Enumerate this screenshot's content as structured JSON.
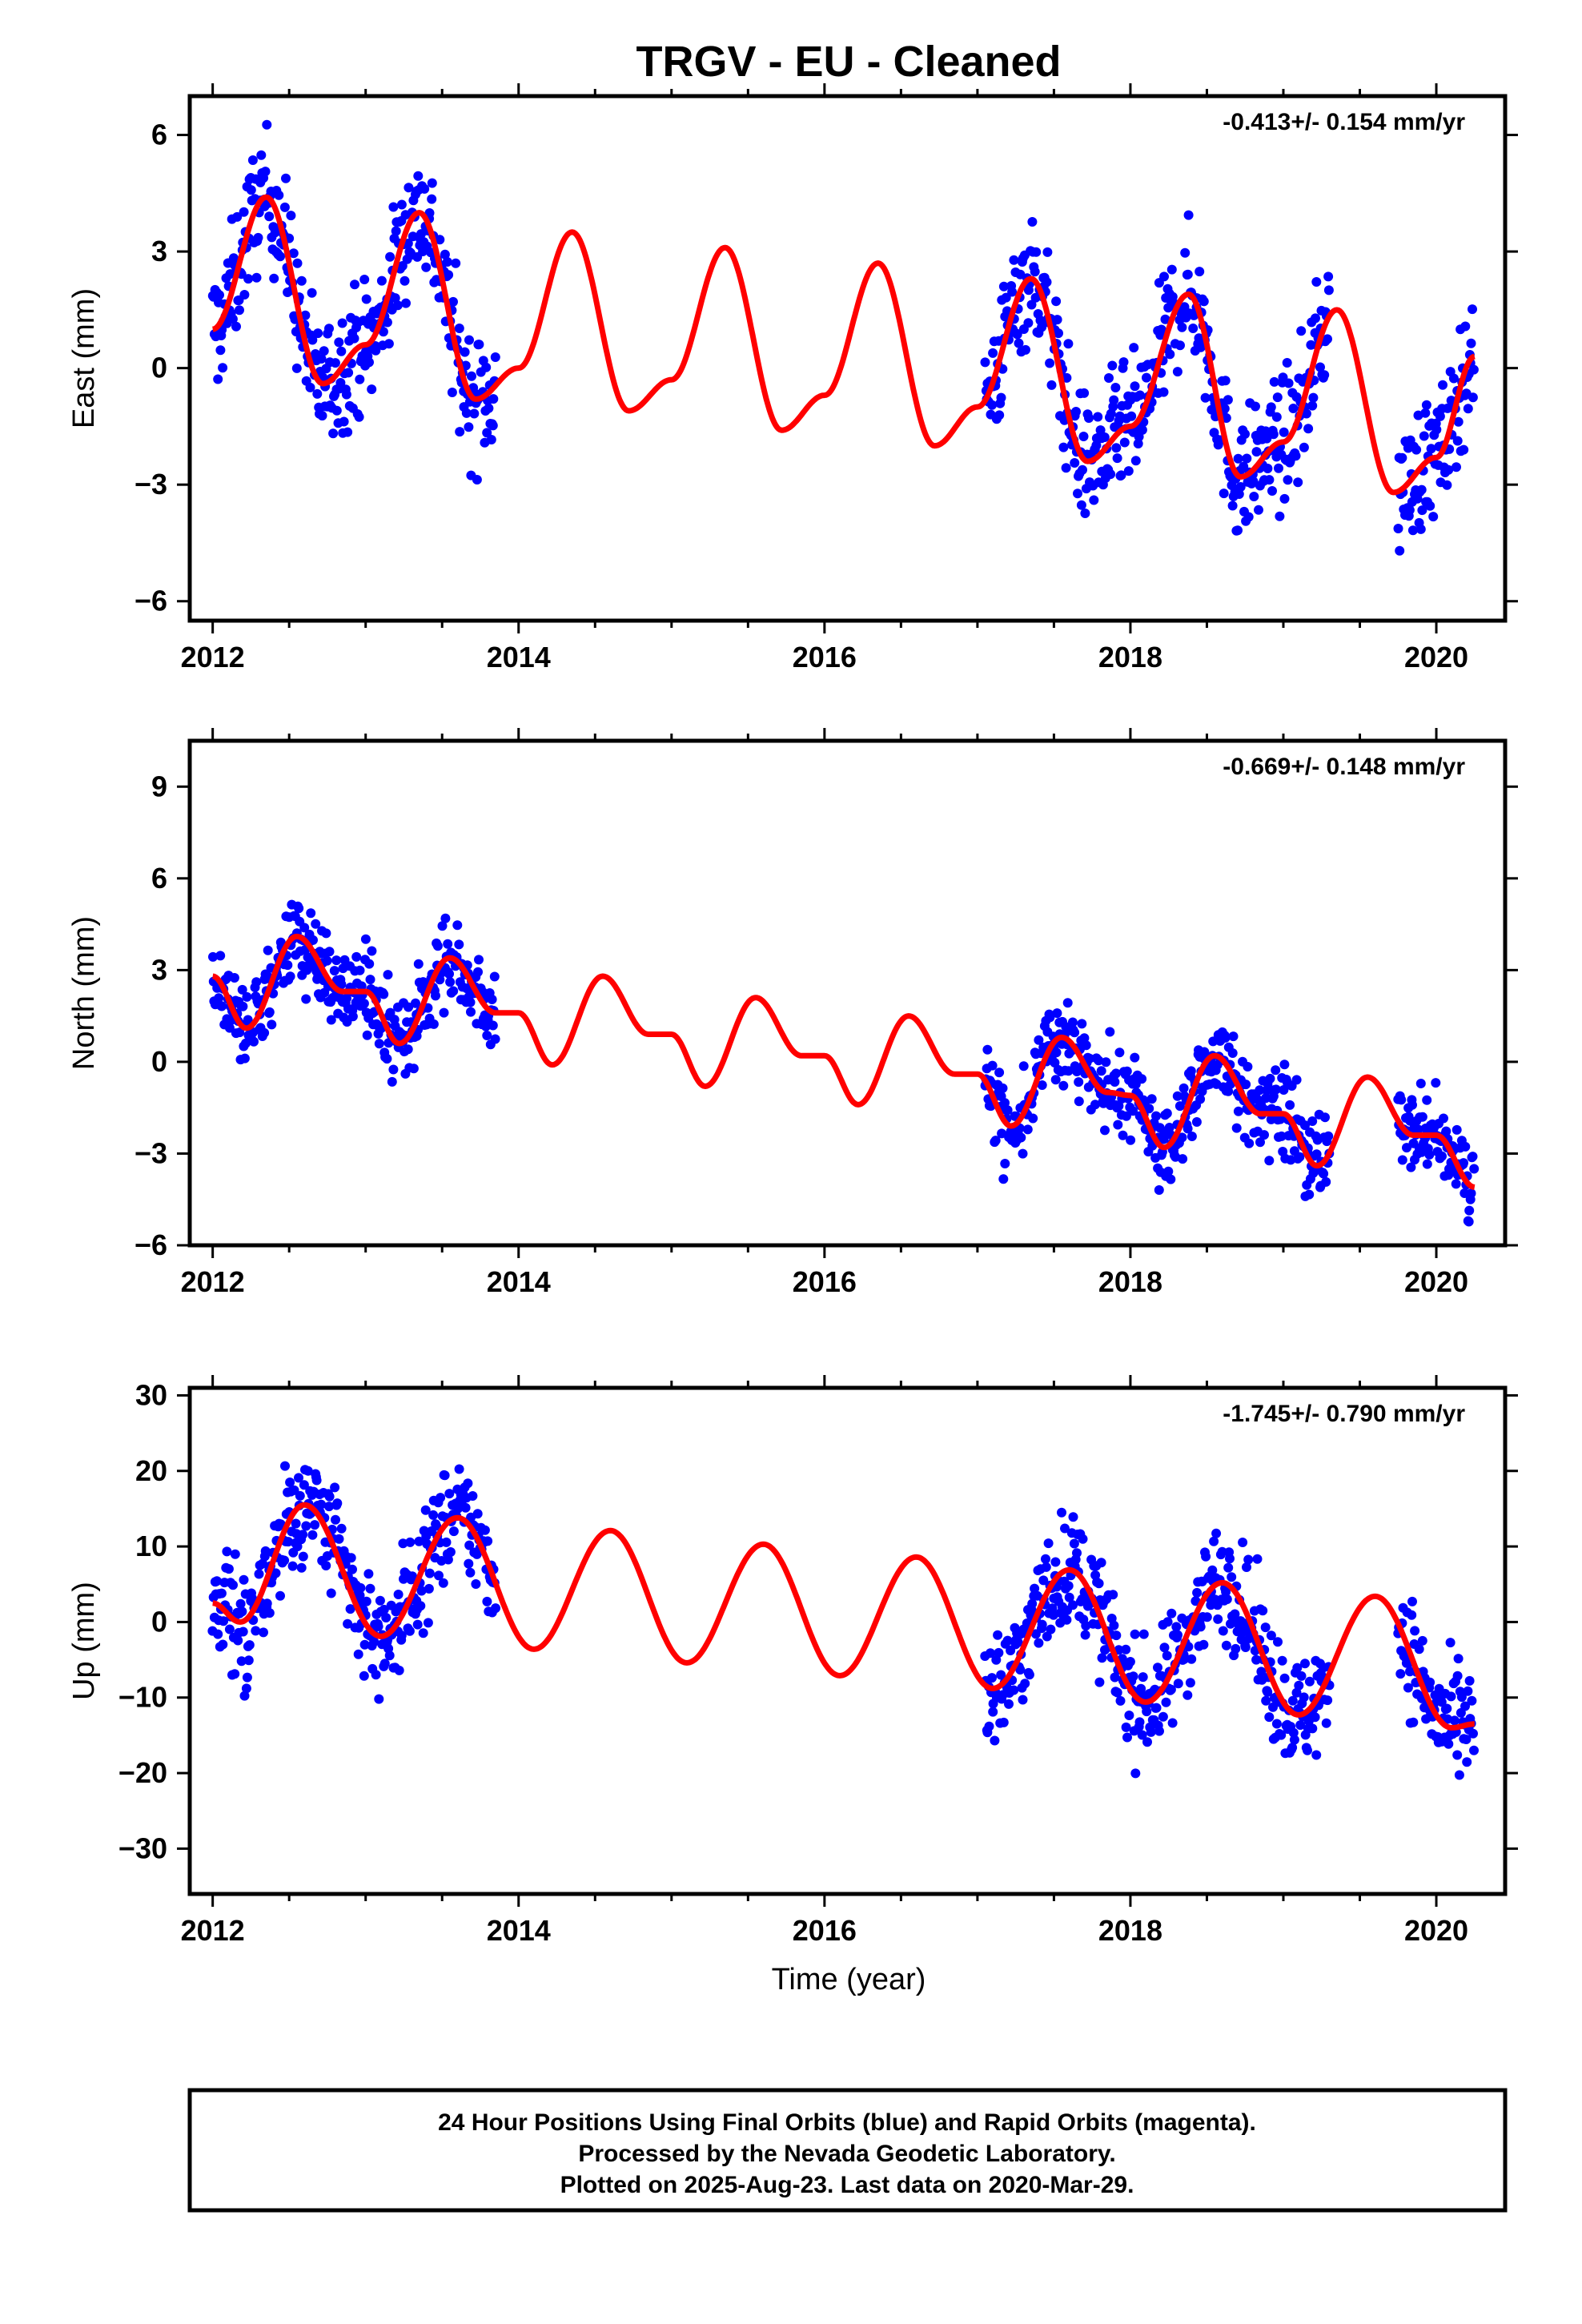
{
  "page": {
    "title": "TRGV  - EU - Cleaned",
    "xlabel": "Time (year)",
    "footer": [
      "24 Hour Positions Using Final Orbits (blue) and Rapid Orbits (magenta).",
      "Processed by the Nevada Geodetic Laboratory.",
      "Plotted on 2025-Aug-23. Last data on 2020-Mar-29."
    ]
  },
  "chart_data": [
    {
      "type": "scatter",
      "ylabel": "East (mm)",
      "rate_label": "-0.413+/- 0.154 mm/yr",
      "xlim": [
        2011.85,
        2020.45
      ],
      "ylim": [
        -6.5,
        7.0
      ],
      "x_ticks": [
        2012,
        2014,
        2016,
        2018,
        2020
      ],
      "y_ticks": [
        -6,
        -3,
        0,
        3,
        6
      ],
      "point_color": "#0000ff",
      "line_color": "#ff0000",
      "trend": {
        "x": [
          2012.0,
          2012.35,
          2012.72,
          2013.0,
          2013.35,
          2013.72,
          2014.0,
          2014.35,
          2014.72,
          2015.0,
          2015.35,
          2015.72,
          2016.0,
          2016.35,
          2016.72,
          2017.0,
          2017.35,
          2017.72,
          2018.0,
          2018.38,
          2018.72,
          2019.0,
          2019.35,
          2019.72,
          2020.0,
          2020.25
        ],
        "y": [
          1.0,
          4.4,
          -0.4,
          0.6,
          4.0,
          -0.8,
          0.0,
          3.5,
          -1.1,
          -0.3,
          3.1,
          -1.6,
          -0.7,
          2.7,
          -2.0,
          -1.0,
          2.3,
          -2.4,
          -1.5,
          1.9,
          -2.8,
          -1.9,
          1.5,
          -3.2,
          -2.3,
          0.3
        ]
      },
      "segments": [
        [
          2012.0,
          2013.85
        ],
        [
          2017.05,
          2019.3
        ],
        [
          2019.75,
          2020.25
        ]
      ],
      "noise": 1.1
    },
    {
      "type": "scatter",
      "ylabel": "North (mm)",
      "rate_label": "-0.669+/- 0.148 mm/yr",
      "xlim": [
        2011.85,
        2020.45
      ],
      "ylim": [
        -6.0,
        10.5
      ],
      "x_ticks": [
        2012,
        2014,
        2016,
        2018,
        2020
      ],
      "y_ticks": [
        -6,
        -3,
        0,
        3,
        6,
        9
      ],
      "point_color": "#0000ff",
      "line_color": "#ff0000",
      "trend": {
        "x": [
          2012.0,
          2012.22,
          2012.55,
          2012.85,
          2013.0,
          2013.22,
          2013.55,
          2013.85,
          2014.0,
          2014.22,
          2014.55,
          2014.85,
          2015.0,
          2015.22,
          2015.55,
          2015.85,
          2016.0,
          2016.22,
          2016.55,
          2016.85,
          2017.0,
          2017.22,
          2017.55,
          2017.85,
          2018.0,
          2018.22,
          2018.55,
          2018.85,
          2019.0,
          2019.22,
          2019.55,
          2019.85,
          2020.0,
          2020.25
        ],
        "y": [
          2.8,
          1.1,
          4.1,
          2.3,
          2.3,
          0.6,
          3.4,
          1.6,
          1.6,
          -0.1,
          2.8,
          0.9,
          0.9,
          -0.8,
          2.1,
          0.2,
          0.2,
          -1.4,
          1.5,
          -0.4,
          -0.4,
          -2.1,
          0.8,
          -1.0,
          -1.1,
          -2.8,
          0.2,
          -1.7,
          -1.7,
          -3.4,
          -0.5,
          -2.4,
          -2.4,
          -4.1
        ]
      },
      "segments": [
        [
          2012.0,
          2013.85
        ],
        [
          2017.05,
          2019.3
        ],
        [
          2019.75,
          2020.25
        ]
      ],
      "noise": 0.9
    },
    {
      "type": "scatter",
      "ylabel": "Up (mm)",
      "rate_label": "-1.745+/- 0.790 mm/yr",
      "xlim": [
        2011.85,
        2020.45
      ],
      "ylim": [
        -36.0,
        31.0
      ],
      "x_ticks": [
        2012,
        2014,
        2016,
        2018,
        2020
      ],
      "y_ticks": [
        -30,
        -20,
        -10,
        0,
        10,
        20,
        30
      ],
      "point_color": "#0000ff",
      "line_color": "#ff0000",
      "trend": {
        "x": [
          2012.0,
          2012.18,
          2012.6,
          2013.1,
          2013.6,
          2014.1,
          2014.6,
          2015.1,
          2015.6,
          2016.1,
          2016.6,
          2017.1,
          2017.6,
          2018.1,
          2018.6,
          2019.1,
          2019.6,
          2020.1,
          2020.25
        ],
        "y": [
          2.5,
          0.0,
          15.5,
          -1.9,
          13.8,
          -3.6,
          12.1,
          -5.4,
          10.3,
          -7.1,
          8.6,
          -8.8,
          6.9,
          -10.6,
          5.2,
          -12.3,
          3.4,
          -14.0,
          -13.5
        ]
      },
      "segments": [
        [
          2012.0,
          2013.85
        ],
        [
          2017.05,
          2019.3
        ],
        [
          2019.75,
          2020.25
        ]
      ],
      "noise": 5.0
    }
  ]
}
